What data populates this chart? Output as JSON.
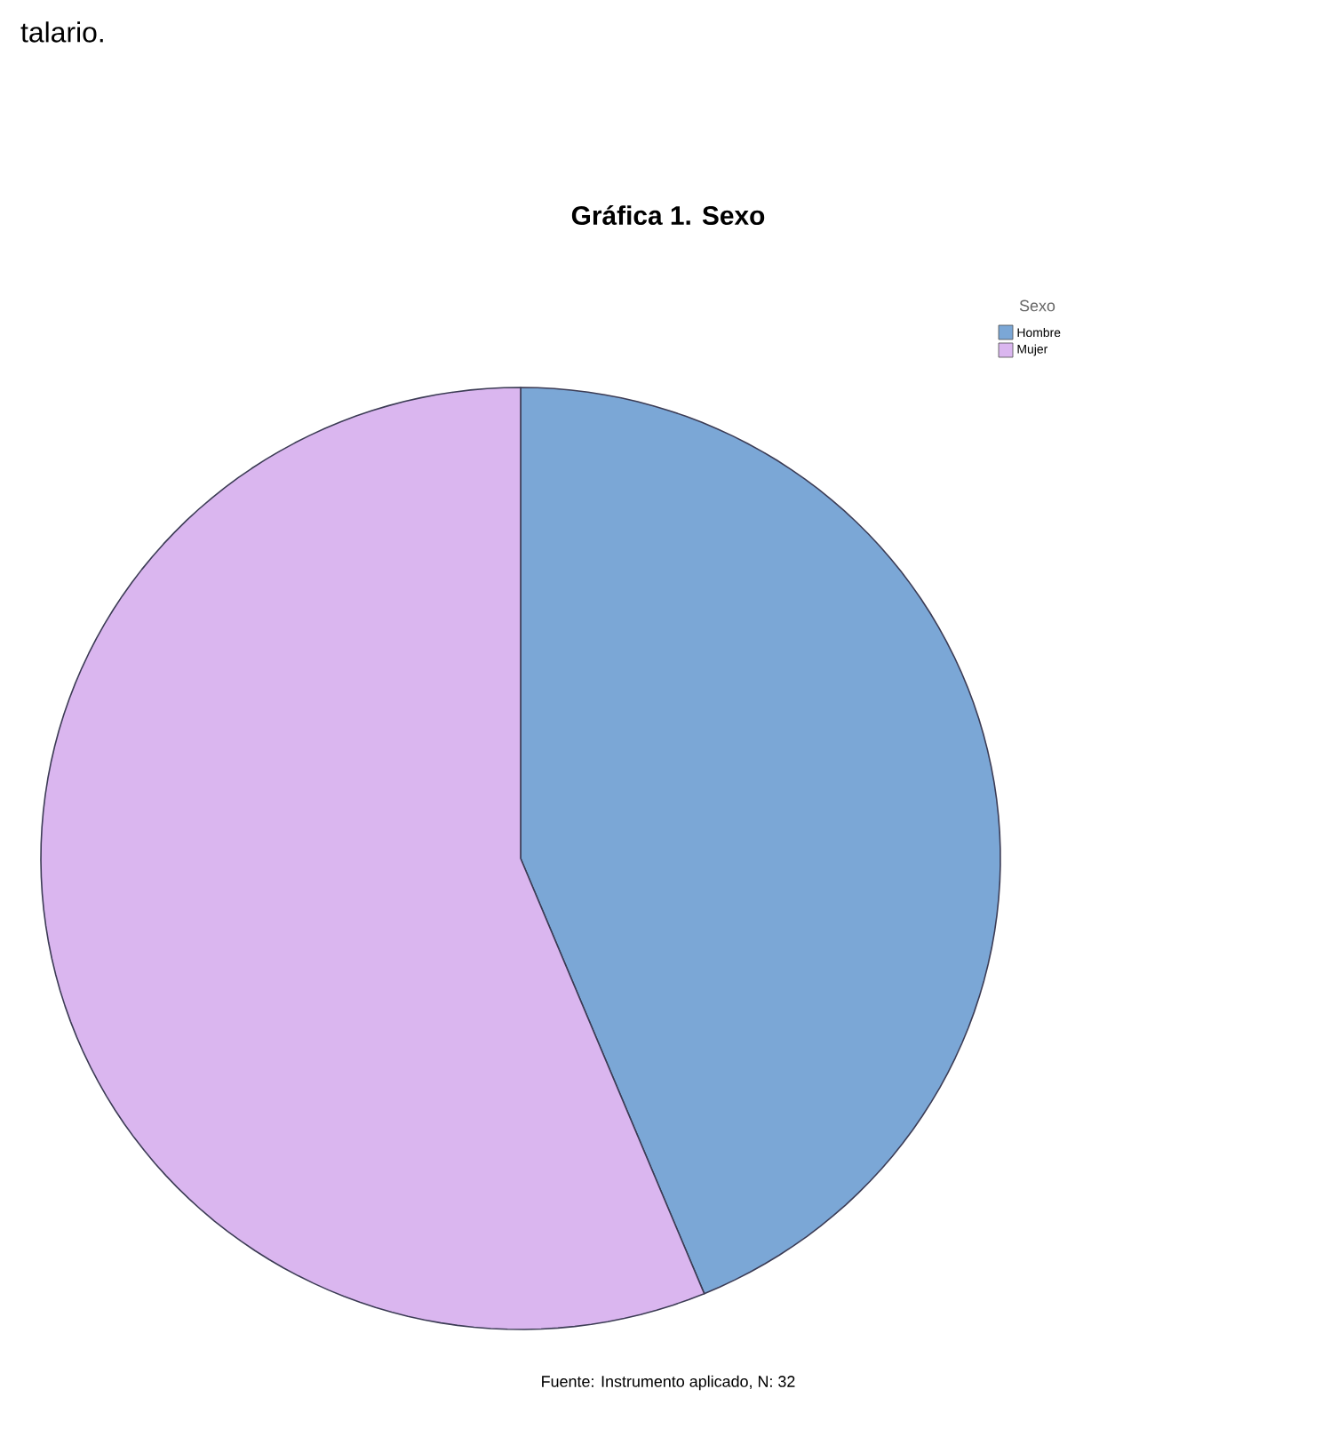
{
  "chart_data": {
    "type": "pie",
    "title": "Gráfica 1.  Sexo",
    "legend_title": "Sexo",
    "categories": [
      "Hombre",
      "Mujer"
    ],
    "values": [
      43.75,
      56.25
    ],
    "colors": [
      "#7ba7d6",
      "#dab6ef"
    ],
    "legend": "top right",
    "annotations": [
      "talario.",
      "Fuente: Instrumento aplicado, N: 32"
    ]
  }
}
